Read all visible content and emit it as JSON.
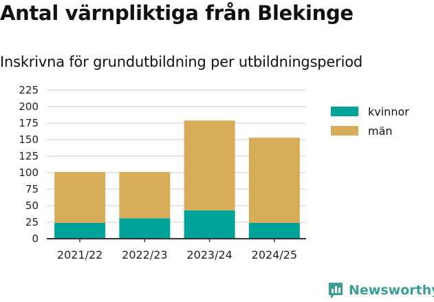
{
  "title": "Antal värnpliktiga från Blekinge",
  "subtitle": "Inskrivna för grundutbildning per utbildningsperiod",
  "brand": "Newsworthy",
  "chart_data": {
    "type": "bar",
    "stacked": true,
    "categories": [
      "2021/22",
      "2022/23",
      "2023/24",
      "2024/25"
    ],
    "series": [
      {
        "name": "kvinnor",
        "color": "#00a39a",
        "values": [
          24,
          31,
          43,
          24
        ]
      },
      {
        "name": "män",
        "color": "#d8ad5a",
        "values": [
          77,
          70,
          136,
          129
        ]
      }
    ],
    "ylim": [
      0,
      225
    ],
    "yticks": [
      0,
      25,
      50,
      75,
      100,
      125,
      150,
      175,
      200,
      225
    ],
    "grid": true,
    "legend": "right"
  }
}
